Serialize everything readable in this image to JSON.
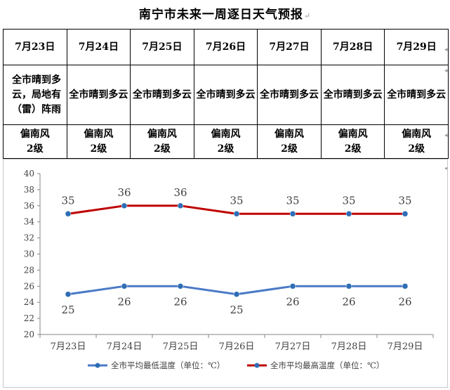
{
  "title": "南宁市未来一周逐日天气预报",
  "forecast": [
    {
      "date": "7月23日",
      "weather": "全市晴到多云，局地有（雷）阵雨",
      "wind_dir": "偏南风",
      "wind_level": "2级"
    },
    {
      "date": "7月24日",
      "weather": "全市晴到多云",
      "wind_dir": "偏南风",
      "wind_level": "2级"
    },
    {
      "date": "7月25日",
      "weather": "全市晴到多云",
      "wind_dir": "偏南风",
      "wind_level": "2级"
    },
    {
      "date": "7月26日",
      "weather": "全市晴到多云",
      "wind_dir": "偏南风",
      "wind_level": "2级"
    },
    {
      "date": "7月27日",
      "weather": "全市晴到多云",
      "wind_dir": "偏南风",
      "wind_level": "2级"
    },
    {
      "date": "7月28日",
      "weather": "全市晴到多云",
      "wind_dir": "偏南风",
      "wind_level": "2级"
    },
    {
      "date": "7月29日",
      "weather": "全市晴到多云",
      "wind_dir": "偏南风",
      "wind_level": "2级"
    }
  ],
  "chart_data": {
    "type": "line",
    "categories": [
      "7月23日",
      "7月24日",
      "7月25日",
      "7月26日",
      "7月27日",
      "7月28日",
      "7月29日"
    ],
    "series": [
      {
        "name": "全市平均最低温度（单位：℃）",
        "values": [
          25,
          26,
          26,
          25,
          26,
          26,
          26
        ],
        "color": "#4a7ac7",
        "label_position": "below"
      },
      {
        "name": "全市平均最高温度（单位：℃）",
        "values": [
          35,
          36,
          36,
          35,
          35,
          35,
          35
        ],
        "color": "#c00000",
        "label_position": "above"
      }
    ],
    "ylim": [
      20,
      40
    ],
    "yticks": [
      20,
      22,
      24,
      26,
      28,
      30,
      32,
      34,
      36,
      38,
      40
    ],
    "marker_color": "#2f6db5",
    "grid": false,
    "legend_position": "bottom"
  }
}
